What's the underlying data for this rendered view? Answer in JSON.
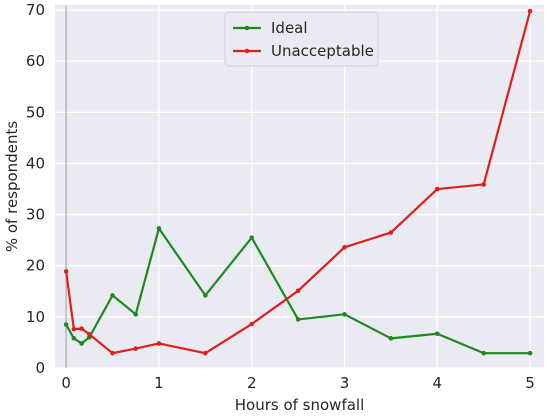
{
  "chart_data": {
    "type": "line",
    "title": "",
    "xlabel": "Hours of snowfall",
    "ylabel": "% of respondents",
    "xlim": [
      -0.12,
      5.15
    ],
    "ylim": [
      0,
      71
    ],
    "x_ticks": [
      0,
      1,
      2,
      3,
      4,
      5
    ],
    "y_ticks": [
      0,
      10,
      20,
      30,
      40,
      50,
      60,
      70
    ],
    "grid": true,
    "legend_position": "top-center",
    "vertical_reference_line_x": 0,
    "series": [
      {
        "name": "Ideal",
        "color": "#1e8a1e",
        "x": [
          0,
          0.083,
          0.167,
          0.25,
          0.5,
          0.75,
          1,
          1.5,
          2,
          2.5,
          3,
          3.5,
          4,
          4.5,
          5
        ],
        "y": [
          8.5,
          5.8,
          4.8,
          6.0,
          14.2,
          10.5,
          27.3,
          14.2,
          25.5,
          9.5,
          10.5,
          5.8,
          6.7,
          2.9,
          2.9
        ]
      },
      {
        "name": "Unacceptable",
        "color": "#e01e1e",
        "x": [
          0,
          0.083,
          0.167,
          0.25,
          0.5,
          0.75,
          1,
          1.5,
          2,
          2.5,
          3,
          3.5,
          4,
          4.5,
          5
        ],
        "y": [
          18.9,
          7.6,
          7.7,
          6.6,
          2.9,
          3.8,
          4.8,
          2.9,
          8.6,
          15.1,
          23.6,
          26.5,
          35.0,
          35.9,
          69.8
        ]
      }
    ]
  }
}
